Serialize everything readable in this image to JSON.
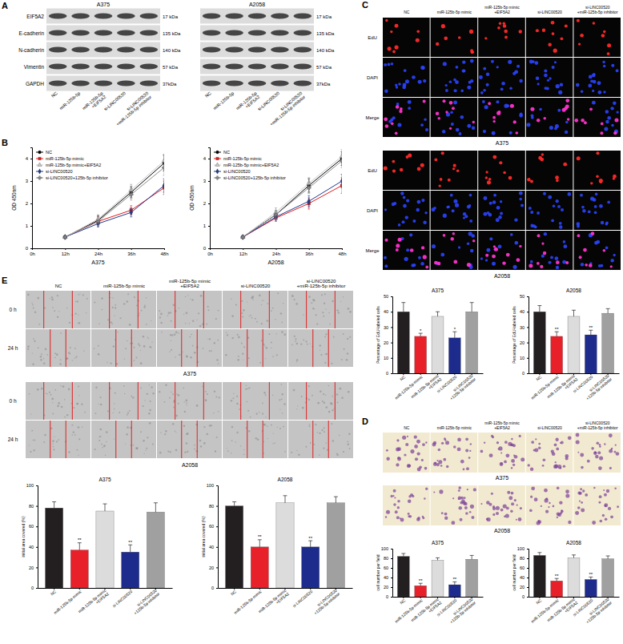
{
  "panel_labels": [
    "A",
    "B",
    "C",
    "D",
    "E"
  ],
  "blots": {
    "cell_lines": [
      "A375",
      "A2058"
    ],
    "proteins": [
      "EIF5A2",
      "E-cadherin",
      "N-cadherin",
      "Vimentin",
      "GAPDH"
    ],
    "sizes": [
      "17 kDa",
      "135 kDa",
      "140 kDa",
      "57 kDa",
      "37kDa"
    ],
    "lanes": [
      "NC",
      "miR-125b-5p",
      "miR-125b-5p+EIF5A2",
      "si-LINC00520",
      "si-LINC00520+miR-125b-5p inhibitor"
    ]
  },
  "edu_images": {
    "groups": [
      "NC",
      "miR-125b-5p mimic",
      "miR-125b-5p mimic+EIF5A2",
      "si-LINC00520",
      "si-LINC00520+miR-125b-5p inhibitor"
    ],
    "rows": [
      "EdU",
      "DAPI",
      "Merge"
    ],
    "cell_lines": [
      "A375",
      "A2058"
    ]
  },
  "wound_images": {
    "groups": [
      "NC",
      "miR-125b-5p mimic",
      "miR-125b-5p mimic+EIF5A2",
      "si-LINC00520",
      "si-LINC00520+miR-125b-5p inhibitor"
    ],
    "rows": [
      "0 h",
      "24 h"
    ],
    "cell_lines": [
      "A375",
      "A2058"
    ]
  },
  "transwell_images": {
    "groups": [
      "NC",
      "miR-125b-5p mimic",
      "miR-125b-5p mimic+EIF5A2",
      "si-LINC00520",
      "si-LINC00520+miR-125b-5p inhibitor"
    ],
    "cell_lines": [
      "A375",
      "A2058"
    ]
  },
  "chart_data": [
    {
      "type": "line",
      "title": "A375",
      "y_label": "OD 450nm",
      "x": [
        12,
        24,
        36,
        48
      ],
      "xlim": [
        0,
        48
      ],
      "xticks": [
        {
          "value": 0,
          "label": "0h"
        },
        {
          "value": 12,
          "label": "12h"
        },
        {
          "value": 24,
          "label": "24h"
        },
        {
          "value": 36,
          "label": "36h"
        },
        {
          "value": 48,
          "label": "48h"
        }
      ],
      "ylim": [
        0,
        4.5
      ],
      "yticks": [
        0,
        1,
        2,
        3,
        4
      ],
      "legend": "top-left",
      "series": [
        {
          "name": "NC",
          "color": "#000000",
          "marker": "circle",
          "values": [
            0.5,
            1.25,
            2.5,
            3.8
          ],
          "errors": [
            0.05,
            0.2,
            0.25,
            0.35
          ]
        },
        {
          "name": "miR-125b-5p mimic",
          "color": "#e41a1c",
          "marker": "square",
          "values": [
            0.5,
            1.2,
            1.7,
            2.7
          ],
          "errors": [
            0.05,
            0.2,
            0.2,
            0.3
          ]
        },
        {
          "name": "miR-125b-5p mimic+EIF5A2",
          "color": "#c8c8c8",
          "marker": "triangle",
          "values": [
            0.5,
            1.3,
            2.6,
            3.9
          ],
          "errors": [
            0.05,
            0.2,
            0.25,
            0.3
          ]
        },
        {
          "name": "si-LINC00520",
          "color": "#1f3a93",
          "marker": "diamond",
          "values": [
            0.5,
            1.1,
            1.6,
            2.8
          ],
          "errors": [
            0.05,
            0.15,
            0.2,
            0.3
          ]
        },
        {
          "name": "si-LINC00520+125b-5p inhibitor",
          "color": "#8c8c8c",
          "marker": "cross",
          "values": [
            0.5,
            1.2,
            2.4,
            3.6
          ],
          "errors": [
            0.05,
            0.2,
            0.25,
            0.35
          ]
        }
      ]
    },
    {
      "type": "line",
      "title": "A2058",
      "y_label": "OD 450nm",
      "x": [
        12,
        24,
        36,
        48
      ],
      "xlim": [
        0,
        48
      ],
      "xticks": [
        {
          "value": 0,
          "label": "0h"
        },
        {
          "value": 12,
          "label": "12h"
        },
        {
          "value": 24,
          "label": "24h"
        },
        {
          "value": 36,
          "label": "36h"
        },
        {
          "value": 48,
          "label": "48h"
        }
      ],
      "ylim": [
        0,
        4.5
      ],
      "yticks": [
        0,
        1,
        2,
        3,
        4
      ],
      "legend": "top-left",
      "series": [
        {
          "name": "NC",
          "color": "#000000",
          "marker": "circle",
          "values": [
            0.5,
            1.5,
            2.8,
            4.0
          ],
          "errors": [
            0.05,
            0.15,
            0.3,
            0.3
          ]
        },
        {
          "name": "miR-125b-5p mimic",
          "color": "#e41a1c",
          "marker": "square",
          "values": [
            0.5,
            1.35,
            2.0,
            2.8
          ],
          "errors": [
            0.05,
            0.15,
            0.25,
            0.35
          ]
        },
        {
          "name": "miR-125b-5p mimic+EIF5A2",
          "color": "#c8c8c8",
          "marker": "triangle",
          "values": [
            0.5,
            1.6,
            2.9,
            4.1
          ],
          "errors": [
            0.05,
            0.2,
            0.25,
            0.3
          ]
        },
        {
          "name": "si-LINC00520",
          "color": "#1f3a93",
          "marker": "diamond",
          "values": [
            0.5,
            1.4,
            2.1,
            3.0
          ],
          "errors": [
            0.05,
            0.15,
            0.25,
            0.3
          ]
        },
        {
          "name": "si-LINC00520+125b-5p inhibitor",
          "color": "#8c8c8c",
          "marker": "cross",
          "values": [
            0.5,
            1.5,
            2.7,
            3.9
          ],
          "errors": [
            0.05,
            0.2,
            0.25,
            0.3
          ]
        }
      ]
    },
    {
      "type": "bar",
      "title": "A375",
      "y_label": "Percentage of EdU-labeled cells",
      "categories": [
        "NC",
        "miR-125b-5p mimic",
        "miR-125b-5p mimic+EIF5A2",
        "si-LINC00520",
        "si-LINC00520+125b-5p inhibitor"
      ],
      "values": [
        40,
        24,
        37,
        23,
        40
      ],
      "errors": [
        6,
        2,
        3,
        4,
        6
      ],
      "colors": [
        "#231f20",
        "#e8202a",
        "#dcdcdc",
        "#1c2b8c",
        "#a0a0a0"
      ],
      "significance": [
        null,
        "*",
        null,
        "*",
        null
      ],
      "ylim": [
        0,
        50
      ],
      "yticks": [
        0,
        10,
        20,
        30,
        40,
        50
      ]
    },
    {
      "type": "bar",
      "title": "A2058",
      "y_label": "Percentage of EdU-labeled cells",
      "categories": [
        "NC",
        "miR-125b-5p mimic",
        "miR-125b-5p mimic+EIF5A2",
        "si-LINC00520",
        "si-LINC00520+125b-5p inhibitor"
      ],
      "values": [
        40,
        24,
        37,
        25,
        39
      ],
      "errors": [
        4,
        3,
        4,
        3,
        3
      ],
      "colors": [
        "#231f20",
        "#e8202a",
        "#dcdcdc",
        "#1c2b8c",
        "#a0a0a0"
      ],
      "significance": [
        null,
        "**",
        null,
        "**",
        null
      ],
      "ylim": [
        0,
        50
      ],
      "yticks": [
        0,
        10,
        20,
        30,
        40,
        50
      ]
    },
    {
      "type": "bar",
      "title": "A375",
      "y_label": "cell number per field",
      "categories": [
        "NC",
        "miR-125b-5p mimic",
        "miR-125b-5p mimic+EIF5A2",
        "si-LINC00520",
        "si-LINC00520+125b-5p inhibitor"
      ],
      "values": [
        84,
        23,
        76,
        25,
        78
      ],
      "errors": [
        6,
        5,
        5,
        6,
        8
      ],
      "colors": [
        "#231f20",
        "#e8202a",
        "#dcdcdc",
        "#1c2b8c",
        "#a0a0a0"
      ],
      "significance": [
        null,
        "**",
        null,
        "**",
        null
      ],
      "ylim": [
        0,
        100
      ],
      "yticks": [
        0,
        20,
        40,
        60,
        80,
        100
      ]
    },
    {
      "type": "bar",
      "title": "A2058",
      "y_label": "cell number per field",
      "categories": [
        "NC",
        "miR-125b-5p mimic",
        "miR-125b-5p mimic+EIF5A2",
        "si-LINC00520",
        "si-LINC00520+125b-5p inhibitor"
      ],
      "values": [
        86,
        33,
        81,
        36,
        79
      ],
      "errors": [
        6,
        5,
        6,
        5,
        6
      ],
      "colors": [
        "#231f20",
        "#e8202a",
        "#dcdcdc",
        "#1c2b8c",
        "#a0a0a0"
      ],
      "significance": [
        null,
        "**",
        null,
        "**",
        null
      ],
      "ylim": [
        0,
        100
      ],
      "yticks": [
        0,
        20,
        40,
        60,
        80,
        100
      ]
    },
    {
      "type": "bar",
      "title": "A375",
      "y_label": "initial area covered (%)",
      "categories": [
        "NC",
        "miR-125b-5p mimic",
        "miR-125b-5p mimic+EIF5A2",
        "si-LINC00520",
        "si-LINC00520+125b-5p inhibitor"
      ],
      "values": [
        78,
        37,
        75,
        35,
        74
      ],
      "errors": [
        6,
        7,
        7,
        7,
        9
      ],
      "colors": [
        "#231f20",
        "#e8202a",
        "#dcdcdc",
        "#1c2b8c",
        "#a0a0a0"
      ],
      "significance": [
        null,
        "**",
        null,
        "**",
        null
      ],
      "ylim": [
        0,
        100
      ],
      "yticks": [
        0,
        20,
        40,
        60,
        80,
        100
      ]
    },
    {
      "type": "bar",
      "title": "A2058",
      "y_label": "initial area covered (%)",
      "categories": [
        "NC",
        "miR-125b-5p mimic",
        "miR-125b-5p mimic+EIF5A2",
        "si-LINC00520",
        "si-LINC00520+125b-5p inhibitor"
      ],
      "values": [
        80,
        40,
        83,
        40,
        83
      ],
      "errors": [
        4,
        7,
        7,
        6,
        6
      ],
      "colors": [
        "#231f20",
        "#e8202a",
        "#dcdcdc",
        "#1c2b8c",
        "#a0a0a0"
      ],
      "significance": [
        null,
        "**",
        null,
        "**",
        null
      ],
      "ylim": [
        0,
        100
      ],
      "yticks": [
        0,
        20,
        40,
        60,
        80,
        100
      ]
    }
  ]
}
